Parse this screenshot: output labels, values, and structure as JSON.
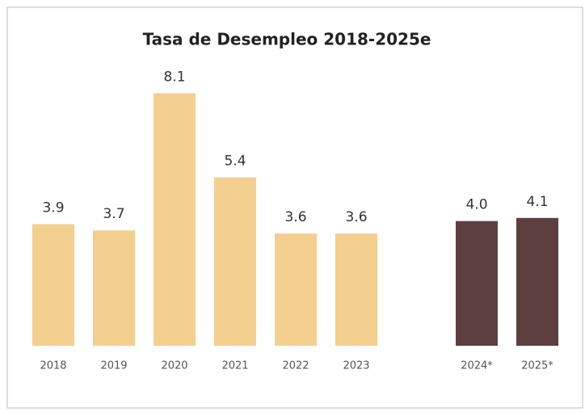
{
  "chart_data": {
    "type": "bar",
    "title": "Tasa de Desempleo 2018-2025e",
    "categories": [
      "2018",
      "2019",
      "2020",
      "2021",
      "2022",
      "2023",
      "2024*",
      "2025*"
    ],
    "values": [
      3.9,
      3.7,
      8.1,
      5.4,
      3.6,
      3.6,
      4.0,
      4.1
    ],
    "value_labels": [
      "3.9",
      "3.7",
      "8.1",
      "5.4",
      "3.6",
      "3.6",
      "4.0",
      "4.1"
    ],
    "colors": [
      "#f3cf8f",
      "#f3cf8f",
      "#f3cf8f",
      "#f3cf8f",
      "#f3cf8f",
      "#f3cf8f",
      "#5d3f40",
      "#5d3f40"
    ],
    "ylim": [
      0,
      8.5
    ]
  }
}
